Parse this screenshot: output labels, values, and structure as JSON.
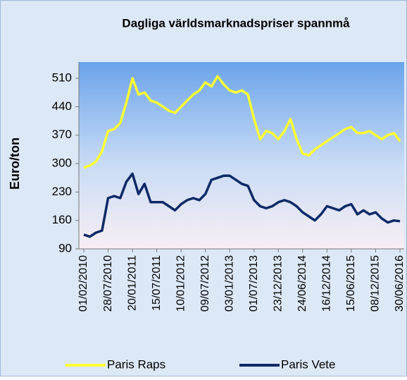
{
  "chart_data": {
    "type": "line",
    "title": "Dagliga världsmarknadspriser spannmå",
    "y_label": "Euro/ton",
    "categories": [
      "01/02/2010",
      null,
      null,
      null,
      "28/07/2010",
      null,
      null,
      null,
      "20/01/2011",
      null,
      null,
      null,
      "15/07/2011",
      null,
      null,
      null,
      "10/01/2012",
      null,
      null,
      null,
      "09/07/2012",
      null,
      null,
      null,
      "03/01/2013",
      null,
      null,
      null,
      "01/07/2013",
      null,
      null,
      null,
      "23/12/2013",
      null,
      null,
      null,
      "24/06/2014",
      null,
      null,
      null,
      "16/12/2014",
      null,
      null,
      null,
      "15/06/2015",
      null,
      null,
      null,
      "08/12/2015",
      null,
      null,
      null,
      "30/06/2016"
    ],
    "series": [
      {
        "name": "Paris Raps",
        "color": "#ffff33",
        "values": [
          290,
          295,
          305,
          330,
          380,
          385,
          400,
          450,
          510,
          470,
          475,
          455,
          450,
          440,
          430,
          425,
          440,
          455,
          470,
          480,
          500,
          490,
          515,
          495,
          480,
          475,
          480,
          470,
          410,
          360,
          380,
          375,
          360,
          380,
          410,
          360,
          325,
          320,
          335,
          345,
          355,
          365,
          375,
          385,
          390,
          375,
          375,
          380,
          370,
          360,
          370,
          375,
          355
        ]
      },
      {
        "name": "Paris Vete",
        "color": "#0d2a66",
        "values": [
          125,
          120,
          130,
          135,
          215,
          220,
          215,
          255,
          275,
          225,
          250,
          205,
          205,
          205,
          195,
          185,
          200,
          210,
          215,
          210,
          225,
          260,
          265,
          270,
          270,
          260,
          250,
          245,
          210,
          195,
          190,
          195,
          205,
          210,
          205,
          195,
          180,
          170,
          160,
          175,
          195,
          190,
          185,
          195,
          200,
          175,
          185,
          175,
          180,
          165,
          155,
          160,
          158
        ]
      }
    ],
    "ylim": [
      90,
      550
    ],
    "yticks": [
      90,
      160,
      230,
      300,
      370,
      440,
      510
    ]
  }
}
